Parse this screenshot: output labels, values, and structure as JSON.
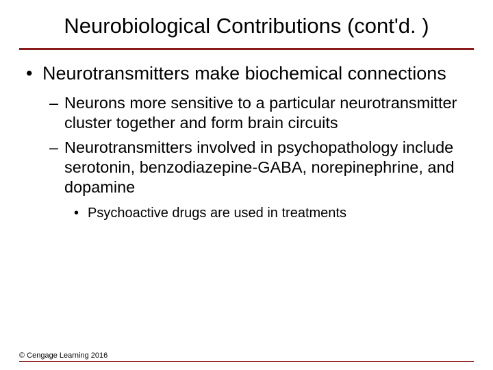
{
  "slide": {
    "title": "Neurobiological Contributions (cont'd. )",
    "rule_color": "#8a1b1b",
    "background_color": "#ffffff",
    "bullets": {
      "l1": "Neurotransmitters make biochemical connections",
      "l2a": "Neurons more sensitive to a particular neurotransmitter cluster together and form brain circuits",
      "l2b": "Neurotransmitters involved in psychopathology include serotonin, benzodiazepine-GABA, norepinephrine, and dopamine",
      "l3": "Psychoactive drugs are used in treatments"
    },
    "footer": "© Cengage Learning 2016",
    "typography": {
      "title_fontsize": 31,
      "l1_fontsize": 27,
      "l2_fontsize": 23.5,
      "l3_fontsize": 20,
      "footer_fontsize": 11,
      "font_family": "Arial"
    }
  }
}
